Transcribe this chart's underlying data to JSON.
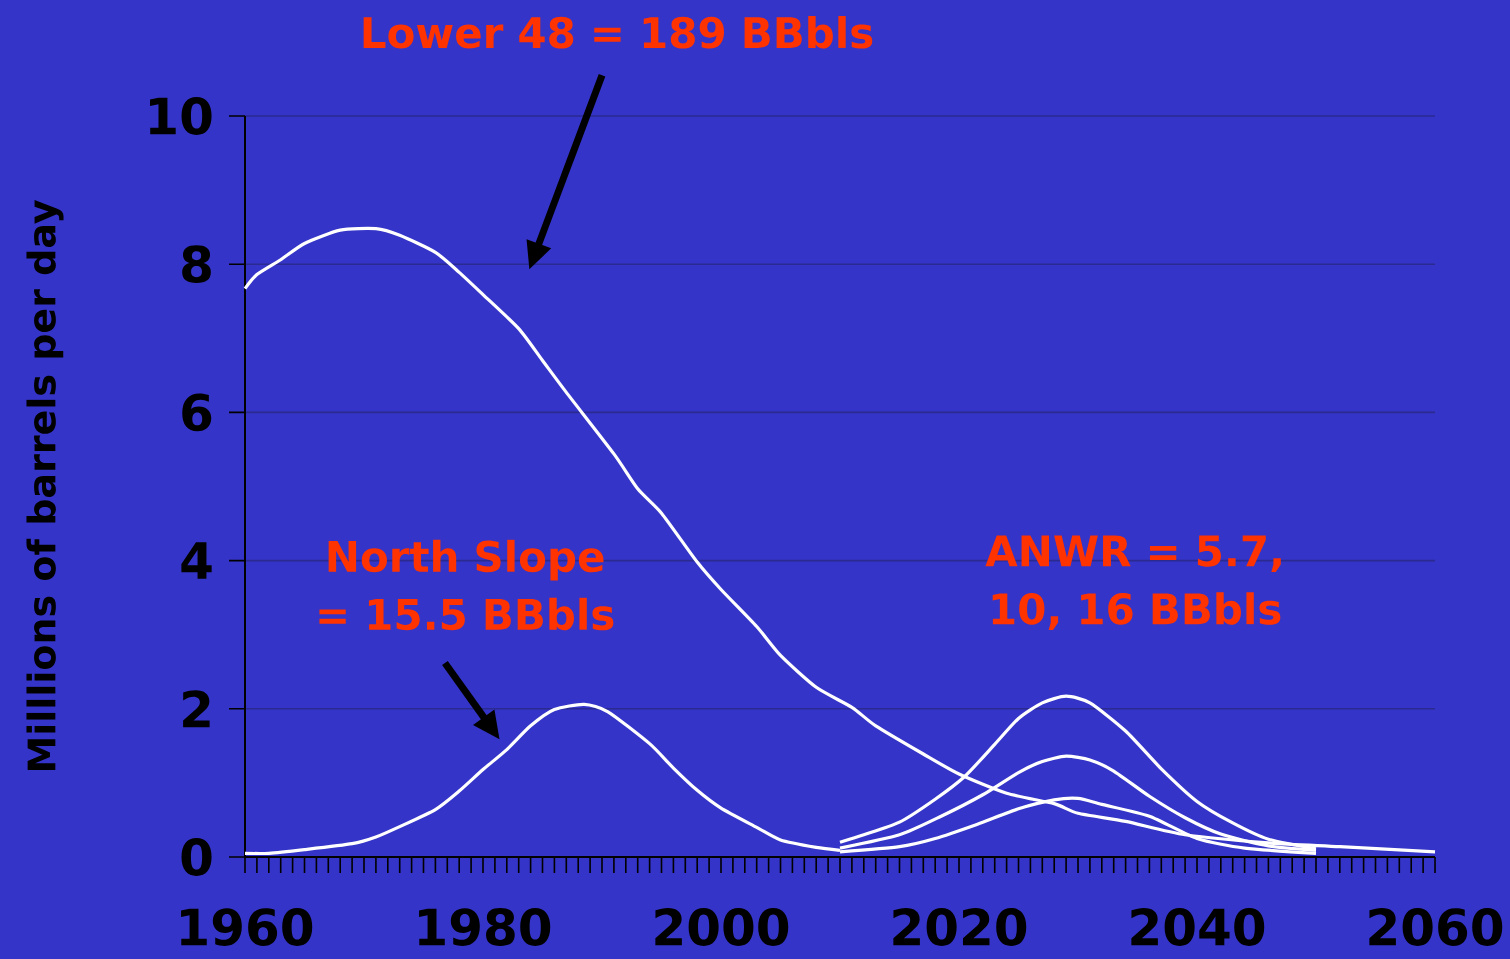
{
  "chart_data": {
    "type": "line",
    "ylabel": "Milllions of barrels per day",
    "xlim": [
      1960,
      2060
    ],
    "ylim": [
      0,
      10
    ],
    "yticks": [
      0,
      2,
      4,
      6,
      8,
      10
    ],
    "xticks": [
      1960,
      {
        "value": 1961,
        "label": null
      },
      {
        "value": 1962,
        "label": null
      },
      {
        "value": 1963,
        "label": null
      },
      {
        "value": 1964,
        "label": null
      },
      {
        "value": 1965,
        "label": null
      },
      {
        "value": 1966,
        "label": null
      },
      {
        "value": 1967,
        "label": null
      },
      {
        "value": 1968,
        "label": null
      },
      {
        "value": 1969,
        "label": null
      },
      {
        "value": 1970,
        "label": null
      },
      {
        "value": 1971,
        "label": null
      },
      {
        "value": 1972,
        "label": null
      },
      {
        "value": 1973,
        "label": null
      },
      {
        "value": 1974,
        "label": null
      },
      {
        "value": 1975,
        "label": null
      },
      {
        "value": 1976,
        "label": null
      },
      {
        "value": 1977,
        "label": null
      },
      {
        "value": 1978,
        "label": null
      },
      {
        "value": 1979,
        "label": null
      },
      1980,
      {
        "value": 1981,
        "label": null
      },
      {
        "value": 1982,
        "label": null
      },
      {
        "value": 1983,
        "label": null
      },
      {
        "value": 1984,
        "label": null
      },
      {
        "value": 1985,
        "label": null
      },
      {
        "value": 1986,
        "label": null
      },
      {
        "value": 1987,
        "label": null
      },
      {
        "value": 1988,
        "label": null
      },
      {
        "value": 1989,
        "label": null
      },
      {
        "value": 1990,
        "label": null
      },
      {
        "value": 1991,
        "label": null
      },
      {
        "value": 1992,
        "label": null
      },
      {
        "value": 1993,
        "label": null
      },
      {
        "value": 1994,
        "label": null
      },
      {
        "value": 1995,
        "label": null
      },
      {
        "value": 1996,
        "label": null
      },
      {
        "value": 1997,
        "label": null
      },
      {
        "value": 1998,
        "label": null
      },
      {
        "value": 1999,
        "label": null
      },
      2000,
      {
        "value": 2001,
        "label": null
      },
      {
        "value": 2002,
        "label": null
      },
      {
        "value": 2003,
        "label": null
      },
      {
        "value": 2004,
        "label": null
      },
      {
        "value": 2005,
        "label": null
      },
      {
        "value": 2006,
        "label": null
      },
      {
        "value": 2007,
        "label": null
      },
      {
        "value": 2008,
        "label": null
      },
      {
        "value": 2009,
        "label": null
      },
      {
        "value": 2010,
        "label": null
      },
      {
        "value": 2011,
        "label": null
      },
      {
        "value": 2012,
        "label": null
      },
      {
        "value": 2013,
        "label": null
      },
      {
        "value": 2014,
        "label": null
      },
      {
        "value": 2015,
        "label": null
      },
      {
        "value": 2016,
        "label": null
      },
      {
        "value": 2017,
        "label": null
      },
      {
        "value": 2018,
        "label": null
      },
      {
        "value": 2019,
        "label": null
      },
      2020,
      {
        "value": 2021,
        "label": null
      },
      {
        "value": 2022,
        "label": null
      },
      {
        "value": 2023,
        "label": null
      },
      {
        "value": 2024,
        "label": null
      },
      {
        "value": 2025,
        "label": null
      },
      {
        "value": 2026,
        "label": null
      },
      {
        "value": 2027,
        "label": null
      },
      {
        "value": 2028,
        "label": null
      },
      {
        "value": 2029,
        "label": null
      },
      {
        "value": 2030,
        "label": null
      },
      {
        "value": 2031,
        "label": null
      },
      {
        "value": 2032,
        "label": null
      },
      {
        "value": 2033,
        "label": null
      },
      {
        "value": 2034,
        "label": null
      },
      {
        "value": 2035,
        "label": null
      },
      {
        "value": 2036,
        "label": null
      },
      {
        "value": 2037,
        "label": null
      },
      {
        "value": 2038,
        "label": null
      },
      {
        "value": 2039,
        "label": null
      },
      2040,
      {
        "value": 2041,
        "label": null
      },
      {
        "value": 2042,
        "label": null
      },
      {
        "value": 2043,
        "label": null
      },
      {
        "value": 2044,
        "label": null
      },
      {
        "value": 2045,
        "label": null
      },
      {
        "value": 2046,
        "label": null
      },
      {
        "value": 2047,
        "label": null
      },
      {
        "value": 2048,
        "label": null
      },
      {
        "value": 2049,
        "label": null
      },
      {
        "value": 2050,
        "label": null
      },
      {
        "value": 2051,
        "label": null
      },
      {
        "value": 2052,
        "label": null
      },
      {
        "value": 2053,
        "label": null
      },
      {
        "value": 2054,
        "label": null
      },
      {
        "value": 2055,
        "label": null
      },
      {
        "value": 2056,
        "label": null
      },
      {
        "value": 2057,
        "label": null
      },
      {
        "value": 2058,
        "label": null
      },
      {
        "value": 2059,
        "label": null
      },
      2060
    ],
    "grid": "y",
    "line_style": "solid",
    "series": [
      {
        "color": "#ffffff",
        "x": [
          1960,
          1961,
          1963,
          1965,
          1968,
          1971,
          1973,
          1976,
          1978,
          1980,
          1983,
          1985,
          1987,
          1991,
          1993,
          1995,
          1998,
          2000,
          2003,
          2005,
          2008,
          2011,
          2013,
          2017,
          2020,
          2024,
          2028,
          2030,
          2034,
          2039,
          2046,
          2052,
          2060
        ],
        "values": [
          7.67,
          7.86,
          8.06,
          8.28,
          8.46,
          8.48,
          8.39,
          8.16,
          7.89,
          7.59,
          7.13,
          6.7,
          6.27,
          5.44,
          4.97,
          4.64,
          3.98,
          3.61,
          3.11,
          2.72,
          2.29,
          2.02,
          1.77,
          1.39,
          1.12,
          0.86,
          0.72,
          0.59,
          0.48,
          0.3,
          0.19,
          0.14,
          0.07
        ]
      },
      {
        "color": "#ffffff",
        "x": [
          1960,
          1962,
          1965,
          1969,
          1971,
          1973,
          1976,
          1978,
          1980,
          1982,
          1984,
          1986,
          1988.5,
          1990.5,
          1994,
          1996,
          1998,
          2000,
          2003,
          2005,
          2008,
          2010
        ],
        "values": [
          0.05,
          0.05,
          0.1,
          0.18,
          0.27,
          0.41,
          0.64,
          0.89,
          1.18,
          1.45,
          1.77,
          1.99,
          2.06,
          1.96,
          1.53,
          1.2,
          0.9,
          0.66,
          0.4,
          0.23,
          0.13,
          0.09
        ]
      },
      {
        "color": "#ffffff",
        "x": [
          2010,
          2012,
          2015,
          2018,
          2020.5,
          2023,
          2025,
          2027,
          2029,
          2031,
          2034,
          2037,
          2040,
          2043,
          2046,
          2050
        ],
        "values": [
          0.2,
          0.3,
          0.47,
          0.78,
          1.09,
          1.52,
          1.87,
          2.08,
          2.17,
          2.08,
          1.7,
          1.19,
          0.75,
          0.46,
          0.24,
          0.11
        ]
      },
      {
        "color": "#ffffff",
        "x": [
          2010,
          2015,
          2018.5,
          2022,
          2025,
          2027,
          2029,
          2031,
          2033,
          2036,
          2039,
          2042,
          2046,
          2050
        ],
        "values": [
          0.12,
          0.3,
          0.55,
          0.84,
          1.14,
          1.29,
          1.36,
          1.31,
          1.16,
          0.82,
          0.53,
          0.31,
          0.15,
          0.09
        ]
      },
      {
        "color": "#ffffff",
        "x": [
          2010,
          2015,
          2018,
          2021.5,
          2025,
          2028,
          2030,
          2032,
          2036,
          2040,
          2044,
          2050
        ],
        "values": [
          0.07,
          0.14,
          0.25,
          0.44,
          0.65,
          0.77,
          0.79,
          0.71,
          0.55,
          0.25,
          0.12,
          0.05
        ]
      }
    ],
    "annotations": [
      "Lower 48 = 189 BBbls",
      "North Slope = 15.5 BBbls",
      "ANWR = 5.7, 10, 16 BBbls"
    ]
  }
}
